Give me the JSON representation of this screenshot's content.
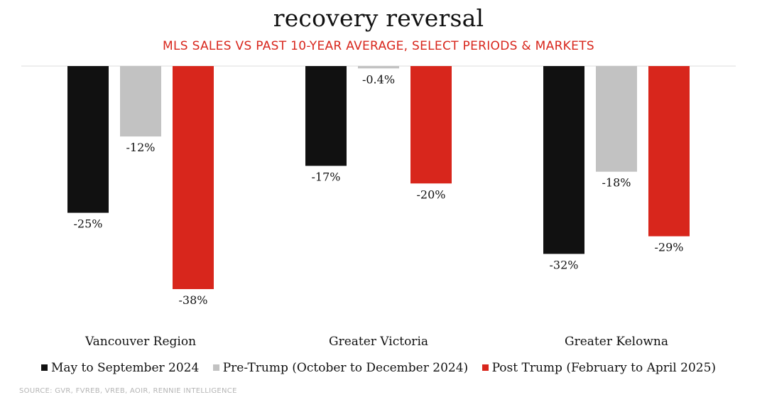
{
  "chart_data": {
    "type": "bar",
    "title": "recovery reversal",
    "subtitle": "MLS SALES VS PAST 10-YEAR AVERAGE, SELECT PERIODS & MARKETS",
    "categories": [
      "Vancouver Region",
      "Greater Victoria",
      "Greater Kelowna"
    ],
    "series": [
      {
        "name": "May to September 2024",
        "color": "#111111",
        "values": [
          -25,
          -17,
          -32
        ],
        "labels": [
          "-25%",
          "-17%",
          "-32%"
        ]
      },
      {
        "name": "Pre-Trump (October to December 2024)",
        "color": "#c2c2c2",
        "values": [
          -12,
          -0.4,
          -18
        ],
        "labels": [
          "-12%",
          "-0.4%",
          "-18%"
        ]
      },
      {
        "name": "Post Trump (February to April 2025)",
        "color": "#d8261c",
        "values": [
          -38,
          -20,
          -29
        ],
        "labels": [
          "-38%",
          "-20%",
          "-29%"
        ]
      }
    ],
    "ylim": [
      -38,
      0
    ],
    "xlabel": "",
    "ylabel": "",
    "grid": false,
    "legend_position": "bottom"
  },
  "source": "SOURCE: GVR, FVREB, VREB, AOIR, RENNIE INTELLIGENCE"
}
